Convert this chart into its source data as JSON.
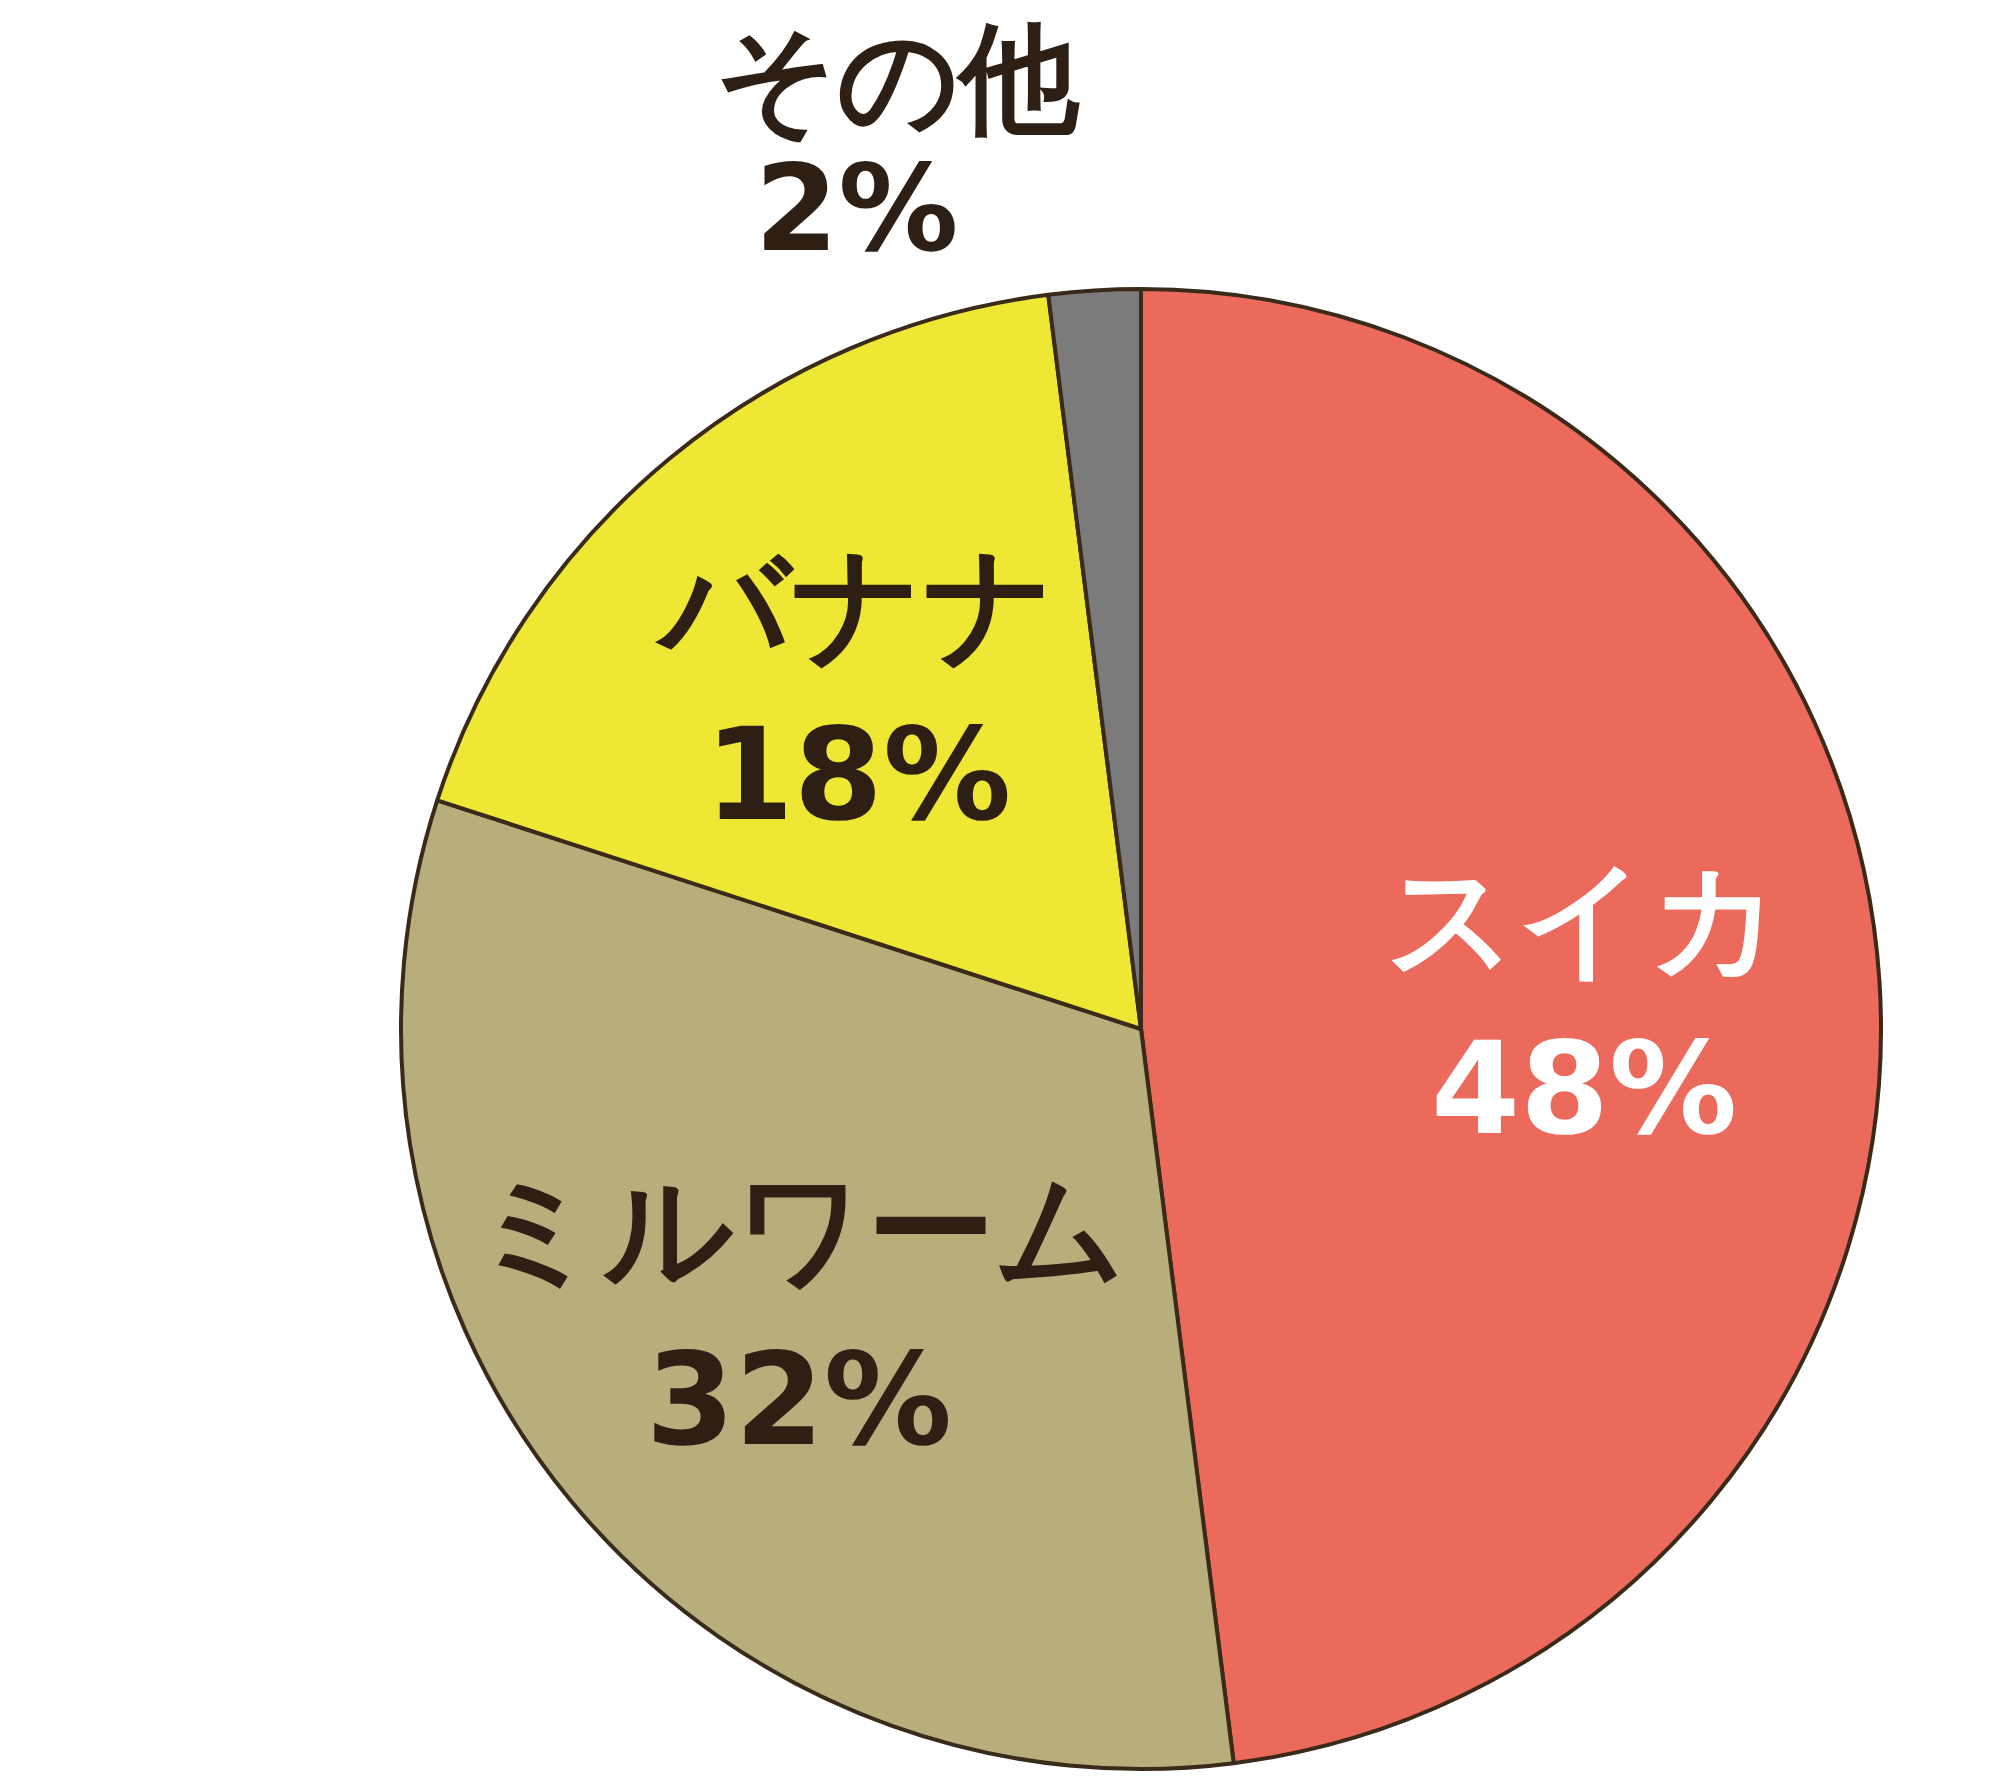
{
  "chart_data": {
    "type": "pie",
    "categories": [
      "スイカ",
      "ミルワーム",
      "バナナ",
      "その他"
    ],
    "values": [
      48,
      32,
      18,
      2
    ],
    "value_labels": [
      "48%",
      "32%",
      "18%",
      "2%"
    ],
    "colors": [
      "#eb6a5c",
      "#b8ae7b",
      "#eee834",
      "#7b7b7b"
    ]
  }
}
